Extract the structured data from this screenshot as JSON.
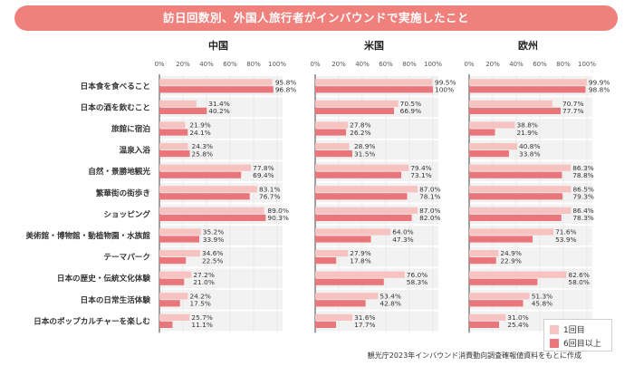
{
  "chart_data": {
    "type": "bar",
    "orientation": "horizontal",
    "title": "訪日回数別、外国人旅行者がインバウンドで実施したこと",
    "categories": [
      "日本食を食べること",
      "日本の酒を飲むこと",
      "旅館に宿泊",
      "温泉入浴",
      "自然・景勝地観光",
      "繁華街の街歩き",
      "ショッピング",
      "美術館・博物館・動植物園・水族館",
      "テーマパーク",
      "日本の歴史・伝統文化体験",
      "日本の日常生活体験",
      "日本のポップカルチャーを楽しむ"
    ],
    "xticks": [
      "0%",
      "20%",
      "40%",
      "60%",
      "80%",
      "100%"
    ],
    "xlim": [
      0,
      100
    ],
    "legend": [
      {
        "name": "1回目",
        "color": "#f6c3c1"
      },
      {
        "name": "6回目以上",
        "color": "#e8767a"
      }
    ],
    "panels": [
      {
        "name": "中国",
        "series": [
          {
            "name": "1回目",
            "values": [
              95.8,
              31.4,
              21.9,
              24.3,
              77.8,
              83.1,
              89.0,
              35.2,
              34.6,
              27.2,
              24.2,
              25.7
            ]
          },
          {
            "name": "6回目以上",
            "values": [
              96.8,
              40.2,
              24.1,
              25.8,
              69.4,
              76.7,
              90.3,
              33.9,
              22.5,
              21.0,
              17.5,
              11.1
            ]
          }
        ]
      },
      {
        "name": "米国",
        "series": [
          {
            "name": "1回目",
            "values": [
              99.5,
              70.5,
              27.8,
              28.9,
              79.4,
              87.0,
              87.0,
              64.0,
              27.9,
              76.0,
              53.4,
              31.6
            ]
          },
          {
            "name": "6回目以上",
            "values": [
              100,
              66.9,
              26.2,
              31.5,
              73.1,
              78.1,
              82.0,
              47.3,
              17.8,
              58.3,
              42.8,
              17.7
            ]
          }
        ]
      },
      {
        "name": "欧州",
        "series": [
          {
            "name": "1回目",
            "values": [
              99.9,
              70.7,
              38.8,
              40.8,
              86.3,
              86.5,
              86.4,
              71.6,
              24.9,
              82.6,
              51.3,
              31.0
            ]
          },
          {
            "name": "6回目以上",
            "values": [
              98.8,
              77.7,
              21.9,
              33.8,
              78.8,
              79.3,
              78.3,
              53.9,
              22.9,
              58.0,
              45.8,
              25.4
            ]
          }
        ]
      }
    ],
    "labels": {
      "中国": [
        [
          "95.8%",
          "96.8%"
        ],
        [
          "31.4%",
          "40.2%"
        ],
        [
          "21.9%",
          "24.1%"
        ],
        [
          "24.3%",
          "25.8%"
        ],
        [
          "77.8%",
          "69.4%"
        ],
        [
          "83.1%",
          "76.7%"
        ],
        [
          "89.0%",
          "90.3%"
        ],
        [
          "35.2%",
          "33.9%"
        ],
        [
          "34.6%",
          "22.5%"
        ],
        [
          "27.2%",
          "21.0%"
        ],
        [
          "24.2%",
          "17.5%"
        ],
        [
          "25.7%",
          "11.1%"
        ]
      ],
      "米国": [
        [
          "99.5%",
          "100%"
        ],
        [
          "70.5%",
          "66.9%"
        ],
        [
          "27.8%",
          "26.2%"
        ],
        [
          "28.9%",
          "31.5%"
        ],
        [
          "79.4%",
          "73.1%"
        ],
        [
          "87.0%",
          "78.1%"
        ],
        [
          "87.0%",
          "82.0%"
        ],
        [
          "64.0%",
          "47.3%"
        ],
        [
          "27.9%",
          "17.8%"
        ],
        [
          "76.0%",
          "58.3%"
        ],
        [
          "53.4%",
          "42.8%"
        ],
        [
          "31.6%",
          "17.7%"
        ]
      ],
      "欧州": [
        [
          "99.9%",
          "98.8%"
        ],
        [
          "70.7%",
          "77.7%"
        ],
        [
          "38.8%",
          "21.9%"
        ],
        [
          "40.8%",
          "33.8%"
        ],
        [
          "86.3%",
          "78.8%"
        ],
        [
          "86.5%",
          "79.3%"
        ],
        [
          "86.4%",
          "78.3%"
        ],
        [
          "71.6%",
          "53.9%"
        ],
        [
          "24.9%",
          "22.9%"
        ],
        [
          "82.6%",
          "58.0%"
        ],
        [
          "51.3%",
          "45.8%"
        ],
        [
          "31.0%",
          "25.4%"
        ]
      ]
    },
    "source": "観光庁2023年インバウンド消費動向調査確報値資料をもとに作成"
  }
}
